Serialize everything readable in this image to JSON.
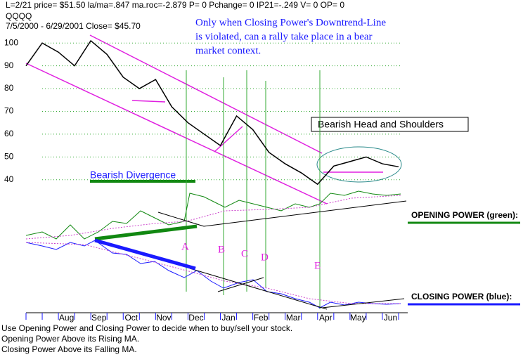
{
  "chart_data": {
    "type": "line",
    "title": "QQQQ",
    "header": "L=2/21  price= $51.50  la/ma=.847  ma.roc=-2.879 P=   0 Pchange=   0 IP21=-.249 V= 0 OP= 0",
    "subtitle": "7/5/2000 - 6/29/2001     Close= $45.70",
    "annotations": {
      "note": [
        "Only when Closing Power's Downtrend-Line",
        "is violated, can a rally take place in a bear",
        "market context."
      ],
      "pattern": "Bearish Head and Shoulders",
      "divergence": "Bearish Divergence",
      "opening": "OPENING POWER (green):",
      "closing": "CLOSING POWER (blue):",
      "points": [
        "A",
        "B",
        "C",
        "D",
        "E"
      ],
      "footer": [
        "Use Opening Power and Closing Power to decide when to buy/sell your stock.",
        "Opening Power Above its Rising MA.",
        "Closing Power Above its Falling MA."
      ]
    },
    "categories": [
      null,
      null,
      "Aug",
      null,
      "Sep",
      null,
      "Oct",
      null,
      "Nov",
      null,
      "Dec",
      null,
      "Jan",
      null,
      "Feb",
      null,
      "Mar",
      null,
      "Apr",
      null,
      "May",
      null,
      "Jun",
      null
    ],
    "series": [
      {
        "name": "QQQQ",
        "color": "#000000",
        "values": [
          90,
          100,
          96,
          90,
          101,
          95,
          85,
          80,
          84,
          72,
          65,
          60,
          55,
          68,
          62,
          52,
          47,
          43,
          38,
          46,
          48,
          50,
          47,
          45.7
        ]
      }
    ],
    "ylim": [
      35,
      105
    ],
    "yticks": [
      40,
      50,
      60,
      70,
      80,
      90,
      100
    ],
    "grid": true
  }
}
